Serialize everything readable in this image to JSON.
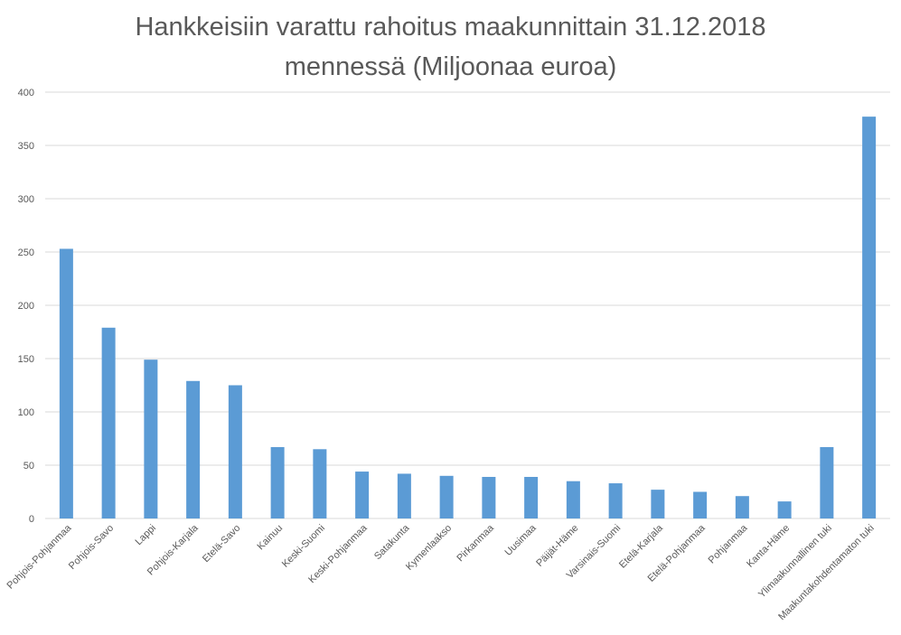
{
  "chart_data": {
    "type": "bar",
    "title_lines": [
      "Hankkeisiin varattu rahoitus maakunnittain 31.12.2018",
      "mennessä (Miljoonaa euroa)"
    ],
    "categories": [
      "Pohjois-Pohjanmaa",
      "Pohjois-Savo",
      "Lappi",
      "Pohjois-Karjala",
      "Etelä-Savo",
      "Kainuu",
      "Keski-Suomi",
      "Keski-Pohjanmaa",
      "Satakunta",
      "Kymenlaakso",
      "Pirkanmaa",
      "Uusimaa",
      "Päijät-Häme",
      "Varsinais-Suomi",
      "Etelä-Karjala",
      "Etelä-Pohjanmaa",
      "Pohjanmaa",
      "Kanta-Häme",
      "Ylimaakunnallinen tuki",
      "Maakuntakohdentamaton tuki"
    ],
    "values": [
      253,
      179,
      149,
      129,
      125,
      67,
      65,
      44,
      42,
      40,
      39,
      39,
      35,
      33,
      27,
      25,
      21,
      16,
      67,
      377
    ],
    "ylim": [
      0,
      400
    ],
    "yticks": [
      0,
      50,
      100,
      150,
      200,
      250,
      300,
      350,
      400
    ],
    "xlabel": "",
    "ylabel": "",
    "grid": true,
    "legend": "none",
    "bar_color": "#5B9BD5",
    "grid_color": "#D9D9D9"
  }
}
